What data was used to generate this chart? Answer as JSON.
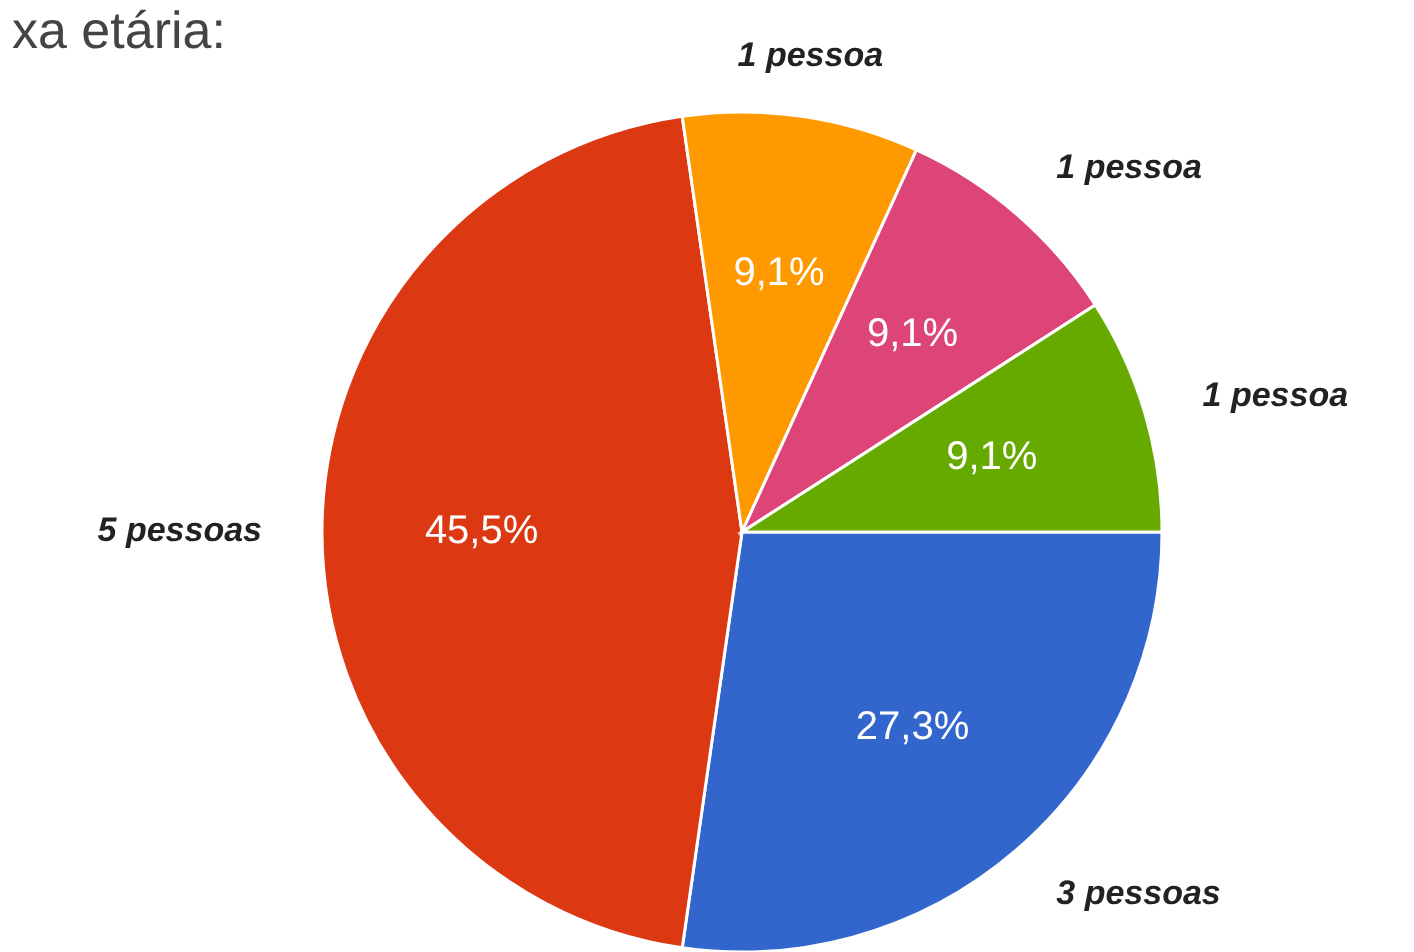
{
  "chart_data": {
    "type": "pie",
    "title": "xa etária:",
    "categories": [
      "3 pessoas",
      "5 pessoas",
      "1 pessoa",
      "1 pessoa",
      "1 pessoa"
    ],
    "values": [
      27.3,
      45.5,
      9.1,
      9.1,
      9.1
    ],
    "value_labels": [
      "27,3%",
      "45,5%",
      "9,1%",
      "9,1%",
      "9,1%"
    ],
    "colors": [
      "#3366cc",
      "#dc3912",
      "#ff9900",
      "#dd4477",
      "#66aa00"
    ]
  }
}
